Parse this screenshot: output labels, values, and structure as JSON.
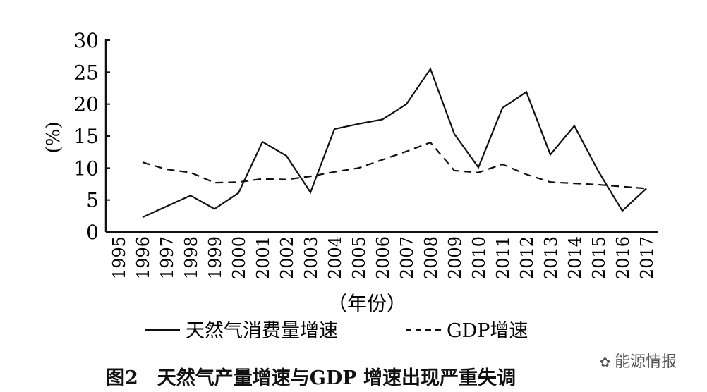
{
  "chart_data": {
    "type": "line",
    "title": "",
    "caption": "图2　天然气产量增速与GDP 增速出现严重失调",
    "xlabel": "（年份）",
    "ylabel": "(%)",
    "ylim": [
      0,
      30
    ],
    "yticks": [
      "0",
      "5",
      "10",
      "15",
      "20",
      "25",
      "30"
    ],
    "categories": [
      "1995",
      "1996",
      "1997",
      "1998",
      "1999",
      "2000",
      "2001",
      "2002",
      "2003",
      "2004",
      "2005",
      "2006",
      "2007",
      "2008",
      "2009",
      "2010",
      "2011",
      "2012",
      "2013",
      "2014",
      "2015",
      "2016",
      "2017"
    ],
    "series": [
      {
        "name": "天然气消费量增速",
        "style": "solid",
        "values": [
          null,
          2.3,
          4.0,
          5.7,
          3.6,
          6.1,
          14.1,
          11.9,
          6.2,
          16.1,
          16.9,
          17.6,
          20.0,
          25.5,
          15.3,
          10.1,
          19.4,
          21.9,
          12.1,
          16.6,
          9.5,
          3.3,
          6.8
        ]
      },
      {
        "name": "GDP增速",
        "style": "dashed",
        "values": [
          null,
          10.9,
          9.8,
          9.3,
          7.7,
          7.8,
          8.3,
          8.2,
          8.7,
          9.4,
          10.0,
          11.3,
          12.6,
          14.0,
          9.6,
          9.3,
          10.6,
          9.0,
          7.8,
          7.6,
          7.4,
          7.1,
          6.8
        ]
      }
    ],
    "grid": false,
    "legend_position": "bottom"
  },
  "watermark": "能源情报"
}
